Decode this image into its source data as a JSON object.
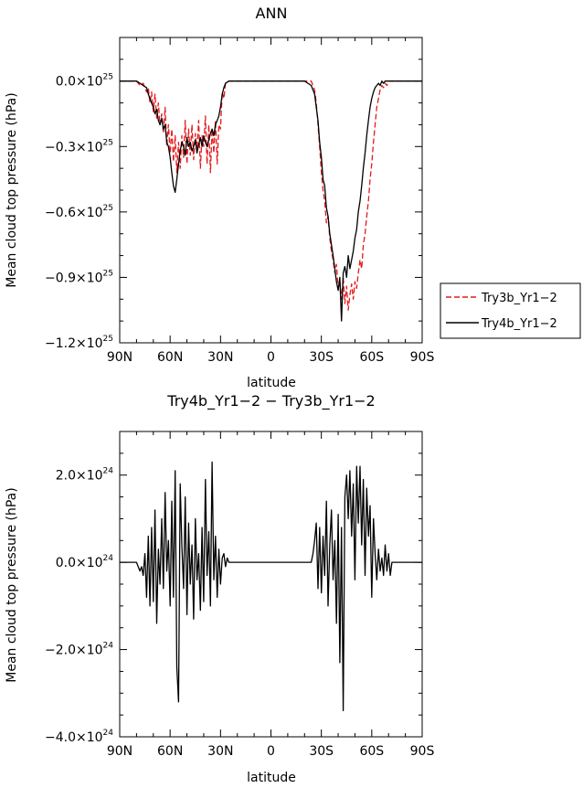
{
  "chart_data": [
    {
      "type": "line",
      "title": "ANN",
      "xlabel": "latitude",
      "ylabel": "Mean cloud top pressure (hPa)",
      "xlim": [
        90,
        -90
      ],
      "ylim": [
        -1.2e+25,
        2e+24
      ],
      "x_ticks": [
        {
          "value": 90,
          "label": "90N"
        },
        {
          "value": 60,
          "label": "60N"
        },
        {
          "value": 30,
          "label": "30N"
        },
        {
          "value": 0,
          "label": "0"
        },
        {
          "value": -30,
          "label": "30S"
        },
        {
          "value": -60,
          "label": "60S"
        },
        {
          "value": -90,
          "label": "90S"
        }
      ],
      "y_ticks": [
        {
          "value": 0.0,
          "mant": "0.0×10",
          "exp": "25"
        },
        {
          "value": -3e+24,
          "mant": "−0.3×10",
          "exp": "25"
        },
        {
          "value": -6e+24,
          "mant": "−0.6×10",
          "exp": "25"
        },
        {
          "value": -9e+24,
          "mant": "−0.9×10",
          "exp": "25"
        },
        {
          "value": -1.2e+25,
          "mant": "−1.2×10",
          "exp": "25"
        }
      ],
      "legend": [
        {
          "name": "Try3b_Yr1−2",
          "color": "#e41a1c",
          "dash": "6,3"
        },
        {
          "name": "Try4b_Yr1−2",
          "color": "#000000",
          "dash": ""
        }
      ],
      "series": [
        {
          "name": "Try3b_Yr1−2",
          "color": "#e41a1c",
          "dash": "6,3",
          "x": [
            90,
            80,
            78,
            76,
            74,
            73,
            72,
            71,
            70,
            69,
            68,
            67,
            66,
            65,
            64,
            63,
            62,
            61,
            60,
            59,
            58,
            57,
            56,
            55,
            54,
            53,
            52,
            51,
            50,
            49,
            48,
            47,
            46,
            45,
            44,
            43,
            42,
            41,
            40,
            39,
            38,
            37,
            36,
            35,
            34,
            33,
            32,
            31,
            30,
            29,
            28,
            27,
            25,
            22,
            18,
            10,
            0,
            -10,
            -20,
            -24,
            -26,
            -27,
            -28,
            -29,
            -30,
            -31,
            -32,
            -33,
            -34,
            -35,
            -36,
            -37,
            -38,
            -39,
            -40,
            -41,
            -42,
            -43,
            -44,
            -45,
            -46,
            -47,
            -48,
            -49,
            -50,
            -51,
            -52,
            -53,
            -54,
            -55,
            -56,
            -57,
            -58,
            -59,
            -60,
            -61,
            -62,
            -63,
            -64,
            -65,
            -66,
            -67,
            -68,
            -69,
            -70,
            -72,
            -75,
            -80,
            -90
          ],
          "y": [
            0,
            0,
            -2e+23,
            -1e+23,
            -5e+23,
            -3e+23,
            -1e+24,
            -5e+23,
            -1.4e+24,
            -6e+23,
            -1.7e+24,
            -1e+24,
            -2e+24,
            -1.5e+24,
            -2.4e+24,
            -1.2e+24,
            -3e+24,
            -2e+24,
            -3.3e+24,
            -2.2e+24,
            -3.7e+24,
            -2.5e+24,
            -4.2e+24,
            -2.8e+24,
            -4e+24,
            -2.5e+24,
            -3.5e+24,
            -1.8e+24,
            -3.8e+24,
            -2.2e+24,
            -3.4e+24,
            -2e+24,
            -3.6e+24,
            -2.4e+24,
            -3.2e+24,
            -1.8e+24,
            -4e+24,
            -2.5e+24,
            -3e+24,
            -1.6e+24,
            -3.8e+24,
            -2e+24,
            -4.2e+24,
            -2.2e+24,
            -3.3e+24,
            -1.8e+24,
            -3.8e+24,
            -2e+24,
            -2.2e+24,
            -5e+23,
            -8e+23,
            -1e+23,
            0,
            0,
            0,
            0,
            0,
            0,
            0,
            0,
            -4e+23,
            -1e+24,
            -2e+24,
            -3e+24,
            -4.2e+24,
            -5e+24,
            -5.5e+24,
            -6.5e+24,
            -6.2e+24,
            -7.2e+24,
            -7.8e+24,
            -8.2e+24,
            -8.8e+24,
            -8.4e+24,
            -9.5e+24,
            -9.2e+24,
            -1e+25,
            -9e+24,
            -1.02e+25,
            -9.4e+24,
            -1.05e+25,
            -9.8e+24,
            -9.3e+24,
            -1e+25,
            -9.2e+24,
            -9.5e+24,
            -8.8e+24,
            -8.2e+24,
            -8.6e+24,
            -7.5e+24,
            -7e+24,
            -6.2e+24,
            -5.5e+24,
            -4.5e+24,
            -3.8e+24,
            -2.8e+24,
            -2e+24,
            -1.2e+24,
            -8e+23,
            -4e+23,
            -2e+23,
            -3e+23,
            -1e+23,
            -2e+23,
            0,
            0,
            0,
            0,
            0
          ]
        },
        {
          "name": "Try4b_Yr1−2",
          "color": "#000000",
          "dash": "",
          "x": [
            90,
            80,
            78,
            76,
            74,
            73,
            72,
            71,
            70,
            69,
            68,
            67,
            66,
            65,
            64,
            63,
            62,
            61,
            60,
            59,
            58,
            57,
            56,
            55,
            54,
            53,
            52,
            51,
            50,
            49,
            48,
            47,
            46,
            45,
            44,
            43,
            42,
            41,
            40,
            39,
            38,
            37,
            36,
            35,
            34,
            33,
            32,
            31,
            30,
            29,
            28,
            27,
            25,
            22,
            18,
            10,
            0,
            -10,
            -20,
            -24,
            -26,
            -27,
            -28,
            -29,
            -30,
            -31,
            -32,
            -33,
            -34,
            -35,
            -36,
            -37,
            -38,
            -39,
            -40,
            -41,
            -42,
            -43,
            -44,
            -45,
            -46,
            -47,
            -48,
            -49,
            -50,
            -51,
            -52,
            -53,
            -54,
            -55,
            -56,
            -57,
            -58,
            -59,
            -60,
            -61,
            -62,
            -63,
            -64,
            -65,
            -66,
            -67,
            -68,
            -69,
            -70,
            -72,
            -75,
            -80,
            -90
          ],
          "y": [
            0,
            0,
            -1e+23,
            -2e+23,
            -3e+23,
            -6e+23,
            -8e+23,
            -1e+24,
            -1.2e+24,
            -1.5e+24,
            -1.3e+24,
            -1.8e+24,
            -2e+24,
            -1.7e+24,
            -2.2e+24,
            -2e+24,
            -2.8e+24,
            -3e+24,
            -3.5e+24,
            -4.2e+24,
            -4.8e+24,
            -5.1e+24,
            -4.5e+24,
            -3.8e+24,
            -3.2e+24,
            -2.8e+24,
            -3e+24,
            -3.4e+24,
            -2.6e+24,
            -3e+24,
            -2.8e+24,
            -3.2e+24,
            -3e+24,
            -2.7e+24,
            -3.3e+24,
            -2.9e+24,
            -2.6e+24,
            -3e+24,
            -2.5e+24,
            -2.8e+24,
            -3e+24,
            -2.7e+24,
            -2.4e+24,
            -2.2e+24,
            -2.5e+24,
            -2e+24,
            -1.8e+24,
            -1.6e+24,
            -1.2e+24,
            -6e+23,
            -3e+23,
            -1e+23,
            0,
            0,
            0,
            0,
            0,
            0,
            0,
            -2e+23,
            -6e+23,
            -1.2e+24,
            -1.8e+24,
            -2.8e+24,
            -3.5e+24,
            -4.5e+24,
            -4.8e+24,
            -5.8e+24,
            -6.2e+24,
            -7e+24,
            -7.5e+24,
            -8e+24,
            -8.6e+24,
            -9.2e+24,
            -9.6e+24,
            -9e+24,
            -1.1e+25,
            -8.8e+24,
            -8.5e+24,
            -9e+24,
            -8e+24,
            -8.6e+24,
            -8.2e+24,
            -7.8e+24,
            -7.2e+24,
            -6.8e+24,
            -6e+24,
            -5.5e+24,
            -4.8e+24,
            -4e+24,
            -3.3e+24,
            -2.5e+24,
            -1.8e+24,
            -1.2e+24,
            -8e+23,
            -5e+23,
            -3e+23,
            -2e+23,
            -1e+23,
            -2e+23,
            0,
            -1e+23,
            0,
            0,
            0,
            0,
            0,
            0,
            0
          ]
        }
      ]
    },
    {
      "type": "line",
      "title": "Try4b_Yr1−2 − Try3b_Yr1−2",
      "xlabel": "latitude",
      "ylabel": "Mean cloud top pressure (hPa)",
      "xlim": [
        90,
        -90
      ],
      "ylim": [
        -4e+24,
        3e+24
      ],
      "x_ticks": [
        {
          "value": 90,
          "label": "90N"
        },
        {
          "value": 60,
          "label": "60N"
        },
        {
          "value": 30,
          "label": "30N"
        },
        {
          "value": 0,
          "label": "0"
        },
        {
          "value": -30,
          "label": "30S"
        },
        {
          "value": -60,
          "label": "60S"
        },
        {
          "value": -90,
          "label": "90S"
        }
      ],
      "y_ticks": [
        {
          "value": 2e+24,
          "mant": "2.0×10",
          "exp": "24"
        },
        {
          "value": 0.0,
          "mant": "0.0×10",
          "exp": "24"
        },
        {
          "value": -2e+24,
          "mant": "−2.0×10",
          "exp": "24"
        },
        {
          "value": -4e+24,
          "mant": "−4.0×10",
          "exp": "24"
        }
      ],
      "series": [
        {
          "name": "Try4b_Yr1−2 − Try3b_Yr1−2",
          "color": "#000000",
          "dash": "",
          "x": [
            90,
            80,
            78,
            77,
            76,
            75,
            74,
            73,
            72,
            71,
            70,
            69,
            68,
            67,
            66,
            65,
            64,
            63,
            62,
            61,
            60,
            59,
            58,
            57,
            56,
            55,
            54,
            53,
            52,
            51,
            50,
            49,
            48,
            47,
            46,
            45,
            44,
            43,
            42,
            41,
            40,
            39,
            38,
            37,
            36,
            35,
            34,
            33,
            32,
            31,
            30,
            29,
            28,
            27,
            26,
            25,
            22,
            10,
            0,
            -10,
            -20,
            -24,
            -25,
            -26,
            -27,
            -28,
            -29,
            -30,
            -31,
            -32,
            -33,
            -34,
            -35,
            -36,
            -37,
            -38,
            -39,
            -40,
            -41,
            -42,
            -43,
            -44,
            -45,
            -46,
            -47,
            -48,
            -49,
            -50,
            -51,
            -52,
            -53,
            -54,
            -55,
            -56,
            -57,
            -58,
            -59,
            -60,
            -61,
            -62,
            -63,
            -64,
            -65,
            -66,
            -67,
            -68,
            -69,
            -70,
            -71,
            -72,
            -75,
            -90
          ],
          "y": [
            0,
            0,
            -2e+23,
            -1e+23,
            -3e+23,
            2e+23,
            -8e+23,
            6e+23,
            -1e+24,
            8e+23,
            -9e+23,
            1.2e+24,
            -1.4e+24,
            3e+23,
            -5e+23,
            1e+24,
            -6e+23,
            1.6e+24,
            -2e+23,
            5e+23,
            -1e+24,
            1.4e+24,
            -8e+23,
            2.1e+24,
            -2.4e+24,
            -3.2e+24,
            1.8e+24,
            4e+23,
            -6e+23,
            1.5e+24,
            -1.2e+24,
            9e+23,
            -5e+23,
            4e+23,
            -1.3e+24,
            1e+24,
            -4e+23,
            2e+23,
            -1.1e+24,
            8e+23,
            -9e+23,
            1.9e+24,
            -3e+23,
            7e+23,
            -1e+24,
            2.3e+24,
            -4e+23,
            6e+23,
            -8e+23,
            3e+23,
            -5e+23,
            1e+23,
            2e+23,
            -1e+23,
            1e+23,
            0,
            0,
            0,
            0,
            0,
            0,
            0,
            2e+23,
            5e+23,
            9e+23,
            -6e+23,
            8e+23,
            -7e+23,
            6e+23,
            -3e+23,
            1.4e+24,
            -1e+24,
            4e+23,
            1.2e+24,
            -4e+23,
            5e+23,
            -1.4e+24,
            1.1e+24,
            -2.3e+24,
            8e+23,
            -3.4e+24,
            1.5e+24,
            2e+24,
            1e+24,
            2.1e+24,
            6e+23,
            1.8e+24,
            -4e+23,
            2.2e+24,
            9e+23,
            2.2e+24,
            4e+23,
            1.9e+24,
            -3e+23,
            1.7e+24,
            6e+23,
            1.3e+24,
            -8e+23,
            1e+24,
            2e+23,
            -4e+23,
            3e+23,
            -2e+23,
            1e+23,
            -3e+23,
            4e+23,
            -2e+23,
            2e+23,
            -3e+23,
            0,
            0,
            0
          ]
        }
      ]
    }
  ]
}
